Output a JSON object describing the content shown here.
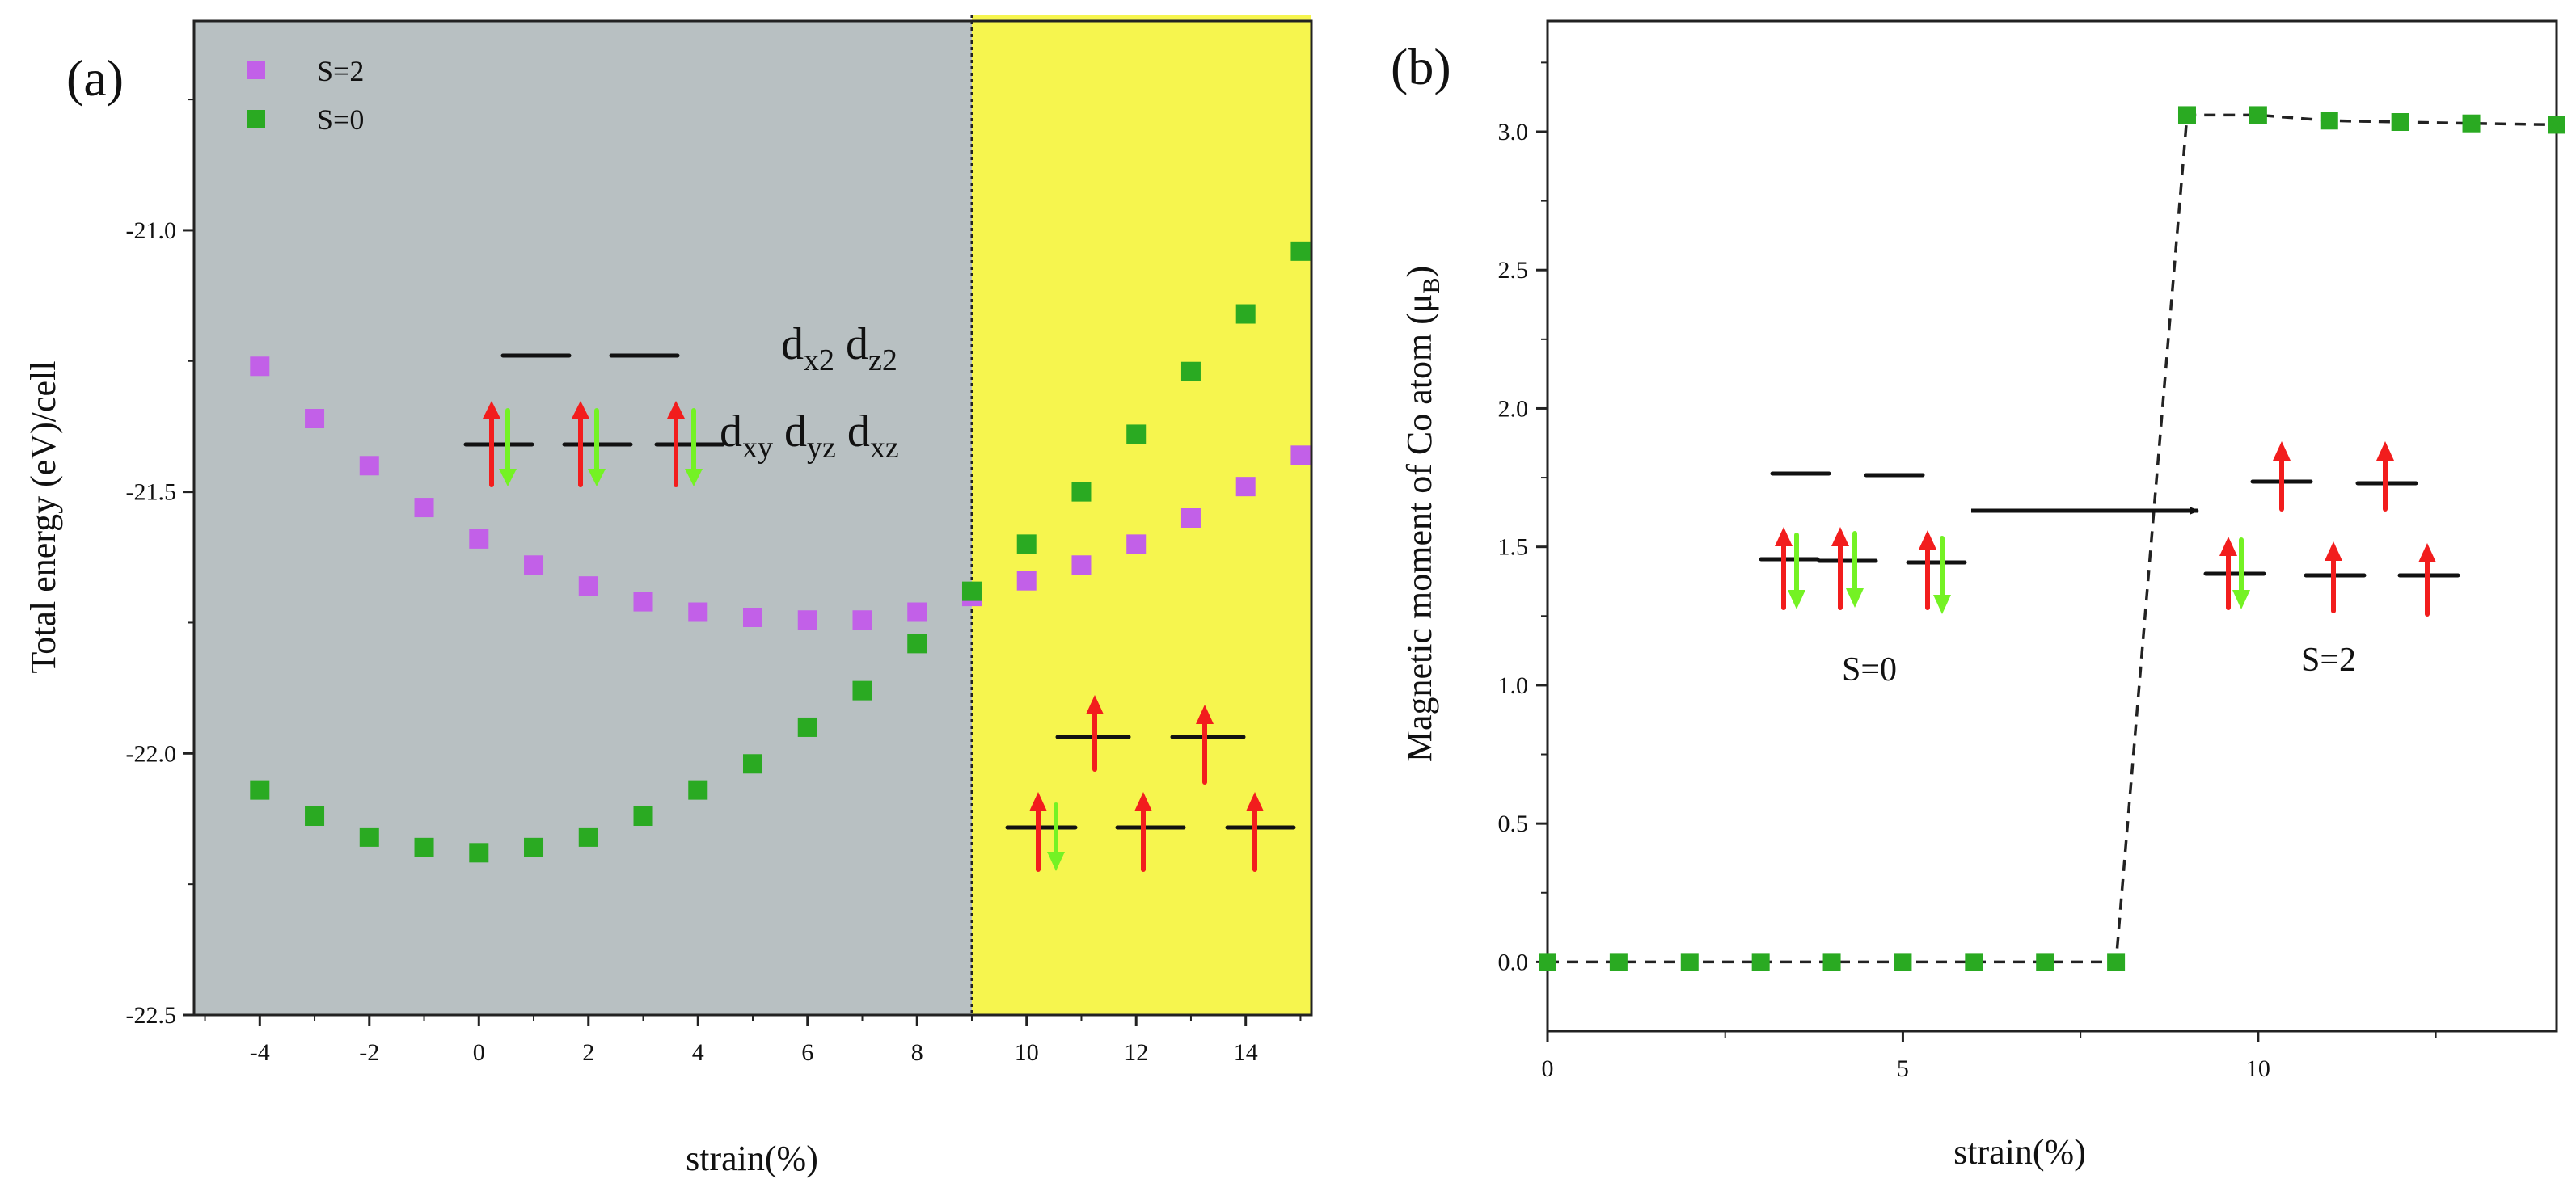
{
  "colors": {
    "s2": "#c260e8",
    "s0": "#2aaa22",
    "grayBg": "#b8c0c2",
    "yellowBg": "#f6f54e",
    "up": "#f21d1d",
    "down": "#74f224"
  },
  "chart_data": [
    {
      "type": "scatter",
      "panel_label": "(a)",
      "xlabel": "strain(%)",
      "ylabel": "Total energy (eV)/cell",
      "xlim": [
        -5.2,
        15.2
      ],
      "ylim": [
        -22.5,
        -20.6
      ],
      "xticks": [
        "-4",
        "-2",
        "0",
        "2",
        "4",
        "6",
        "8",
        "10",
        "12",
        "14"
      ],
      "yticks": [
        "-22.5",
        "-22.0",
        "-21.5",
        "-21.0"
      ],
      "shaded_regions": [
        {
          "x_from": -5.2,
          "x_to": 9,
          "color": "gray"
        },
        {
          "x_from": 9,
          "x_to": 15.2,
          "color": "yellow"
        }
      ],
      "vline_x": 9,
      "legend": [
        {
          "label": "S=2",
          "series": "S=2"
        },
        {
          "label": "S=0",
          "series": "S=0"
        }
      ],
      "x": [
        -4,
        -3,
        -2,
        -1,
        0,
        1,
        2,
        3,
        4,
        5,
        6,
        7,
        8,
        9,
        10,
        11,
        12,
        13,
        14,
        15
      ],
      "series": [
        {
          "name": "S=2",
          "values": [
            -21.26,
            -21.36,
            -21.45,
            -21.53,
            -21.59,
            -21.64,
            -21.68,
            -21.71,
            -21.73,
            -21.74,
            -21.745,
            -21.745,
            -21.73,
            -21.7,
            -21.67,
            -21.64,
            -21.6,
            -21.55,
            -21.49,
            -21.43
          ]
        },
        {
          "name": "S=0",
          "values": [
            -22.07,
            -22.12,
            -22.16,
            -22.18,
            -22.19,
            -22.18,
            -22.16,
            -22.12,
            -22.07,
            -22.02,
            -21.95,
            -21.88,
            -21.79,
            -21.69,
            -21.6,
            -21.5,
            -21.39,
            -21.27,
            -21.16,
            -21.04
          ]
        }
      ],
      "annotations": {
        "eg_labels": [
          {
            "main": "d",
            "sub": "x2"
          },
          {
            "main": "d",
            "sub": "z2"
          }
        ],
        "t2g_labels": [
          {
            "main": "d",
            "sub": "xy"
          },
          {
            "main": "d",
            "sub": "yz"
          },
          {
            "main": "d",
            "sub": "xz"
          }
        ]
      }
    },
    {
      "type": "line",
      "panel_label": "(b)",
      "xlabel": "strain(%)",
      "ylabel_main": "Magnetic moment of Co atom (μ",
      "ylabel_sub": "B",
      "ylabel_end": ")",
      "xlim": [
        0,
        14.2
      ],
      "ylim": [
        -0.25,
        3.4
      ],
      "xticks": [
        "0",
        "5",
        "10"
      ],
      "yticks": [
        "0.0",
        "0.5",
        "1.0",
        "1.5",
        "2.0",
        "2.5",
        "3.0"
      ],
      "x": [
        0,
        1,
        2,
        3,
        4,
        5,
        6,
        7,
        8,
        9,
        10,
        11,
        12,
        13,
        14.2
      ],
      "series": [
        {
          "name": "magnetic moment",
          "style": "dashed",
          "values": [
            0,
            0,
            0,
            0,
            0,
            0,
            0,
            0,
            0,
            3.06,
            3.06,
            3.04,
            3.035,
            3.03,
            3.025
          ]
        }
      ],
      "annotations": {
        "left_state": "S=0",
        "right_state": "S=2"
      }
    }
  ]
}
